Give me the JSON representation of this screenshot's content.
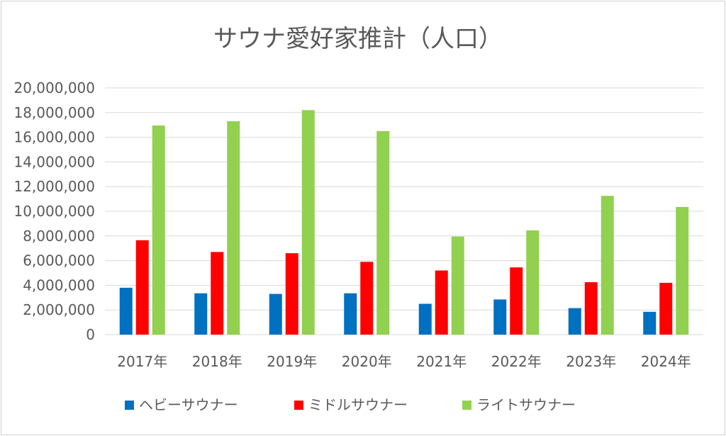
{
  "chart_data": {
    "type": "bar",
    "title": "サウナ愛好家推計（人口）",
    "categories": [
      "2017年",
      "2018年",
      "2019年",
      "2020年",
      "2021年",
      "2022年",
      "2023年",
      "2024年"
    ],
    "series": [
      {
        "name": "ヘビーサウナー",
        "color": "#0070c0",
        "values": [
          3800000,
          3350000,
          3300000,
          3350000,
          2500000,
          2850000,
          2150000,
          1850000
        ]
      },
      {
        "name": "ミドルサウナー",
        "color": "#ff0000",
        "values": [
          7650000,
          6700000,
          6600000,
          5900000,
          5200000,
          5450000,
          4250000,
          4200000
        ]
      },
      {
        "name": "ライトサウナー",
        "color": "#92d050",
        "values": [
          16950000,
          17300000,
          18200000,
          16500000,
          7950000,
          8450000,
          11250000,
          10350000
        ]
      }
    ],
    "yticks": [
      "0",
      "2,000,000",
      "4,000,000",
      "6,000,000",
      "8,000,000",
      "10,000,000",
      "12,000,000",
      "14,000,000",
      "16,000,000",
      "18,000,000",
      "20,000,000"
    ],
    "ylim": [
      0,
      20000000
    ],
    "grid": true,
    "legend_position": "bottom"
  }
}
